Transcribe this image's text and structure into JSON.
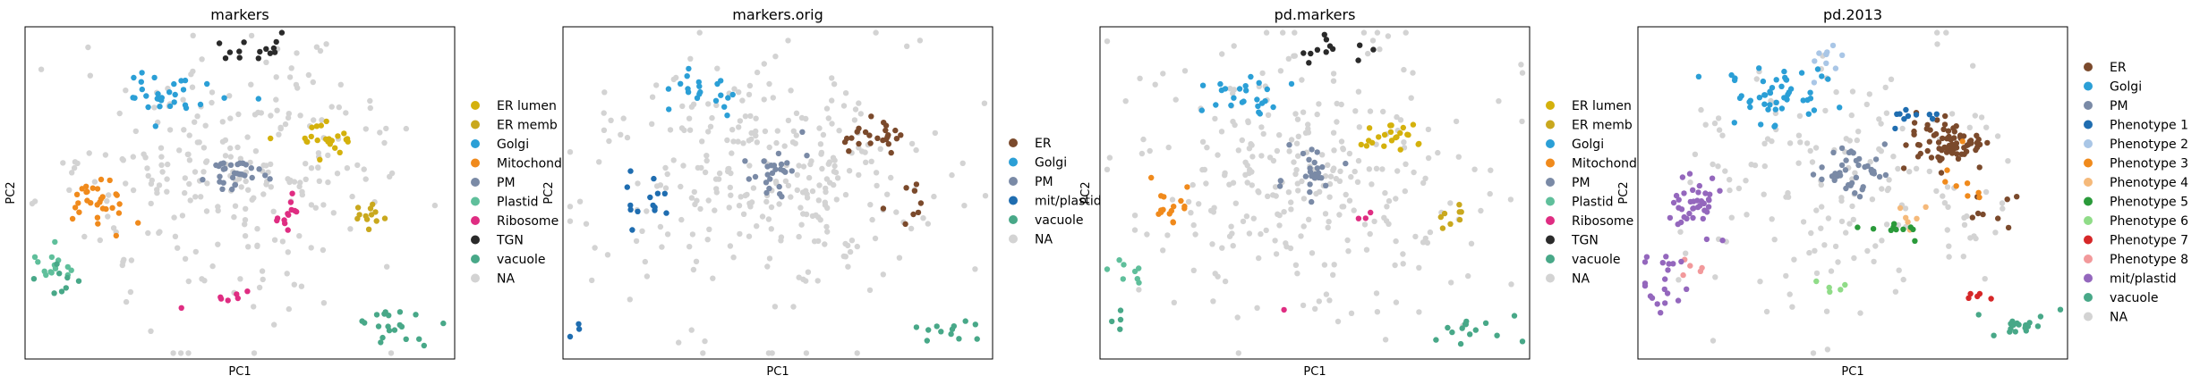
{
  "chart_data": [
    {
      "type": "scatter",
      "title": "markers",
      "xlabel": "PC1",
      "ylabel": "PC2",
      "grid": false,
      "ticks": false,
      "legend_position": "right",
      "legend": [
        {
          "label": "ER lumen",
          "color": "#d4b10c"
        },
        {
          "label": "ER memb",
          "color": "#c9a81e"
        },
        {
          "label": "Golgi",
          "color": "#2b9fd6"
        },
        {
          "label": "Mitochond",
          "color": "#f08a1c"
        },
        {
          "label": "PM",
          "color": "#7a8aa6"
        },
        {
          "label": "Plastid",
          "color": "#5fbf9b"
        },
        {
          "label": "Ribosome",
          "color": "#df2d82"
        },
        {
          "label": "TGN",
          "color": "#2a2a2a"
        },
        {
          "label": "vacuole",
          "color": "#48a888"
        },
        {
          "label": "NA",
          "color": "#d3d3d3"
        }
      ],
      "clusters": [
        {
          "class": "Golgi",
          "center": [
            -3.0,
            5.5
          ],
          "spread": [
            0.9,
            0.6
          ],
          "n": 30
        },
        {
          "class": "TGN",
          "center": [
            0.6,
            7.8
          ],
          "spread": [
            0.7,
            0.5
          ],
          "n": 14
        },
        {
          "class": "Mitochond",
          "center": [
            -6.0,
            0.0
          ],
          "spread": [
            0.7,
            0.7
          ],
          "n": 30
        },
        {
          "class": "PM",
          "center": [
            0.0,
            1.6
          ],
          "spread": [
            0.6,
            0.6
          ],
          "n": 30
        },
        {
          "class": "ER lumen",
          "center": [
            3.5,
            3.4
          ],
          "spread": [
            0.8,
            0.5
          ],
          "n": 24
        },
        {
          "class": "ER memb",
          "center": [
            5.5,
            -0.5
          ],
          "spread": [
            0.4,
            0.4
          ],
          "n": 12
        },
        {
          "class": "Ribosome",
          "center": [
            2.0,
            -0.5
          ],
          "spread": [
            0.4,
            0.6
          ],
          "n": 12
        },
        {
          "class": "Ribosome",
          "center": [
            -0.5,
            -4.8
          ],
          "spread": [
            0.4,
            0.3
          ],
          "n": 6
        },
        {
          "class": "Ribosome",
          "center": [
            -2.5,
            -5.5
          ],
          "spread": [
            0.1,
            0.1
          ],
          "n": 1
        },
        {
          "class": "Plastid",
          "center": [
            -7.6,
            -3.5
          ],
          "spread": [
            0.6,
            0.5
          ],
          "n": 14
        },
        {
          "class": "vacuole",
          "center": [
            6.3,
            -6.2
          ],
          "spread": [
            0.9,
            0.6
          ],
          "n": 20
        },
        {
          "class": "vacuole",
          "center": [
            -7.6,
            -4.4
          ],
          "spread": [
            0.5,
            0.5
          ],
          "n": 8
        },
        {
          "class": "NA",
          "center": [
            -0.5,
            1.5
          ],
          "spread": [
            3.6,
            3.3
          ],
          "n": 260
        }
      ],
      "xlim": [
        -9,
        9
      ],
      "ylim": [
        -8,
        9
      ]
    },
    {
      "type": "scatter",
      "title": "markers.orig",
      "xlabel": "PC1",
      "ylabel": "PC2",
      "grid": false,
      "ticks": false,
      "legend_position": "right",
      "legend": [
        {
          "label": "ER",
          "color": "#7b4a2c"
        },
        {
          "label": "Golgi",
          "color": "#2b9fd6"
        },
        {
          "label": "PM",
          "color": "#7a8aa6"
        },
        {
          "label": "mit/plastid",
          "color": "#1f6db0"
        },
        {
          "label": "vacuole",
          "color": "#48a888"
        },
        {
          "label": "NA",
          "color": "#d3d3d3"
        }
      ],
      "clusters": [
        {
          "class": "Golgi",
          "center": [
            -3.0,
            5.5
          ],
          "spread": [
            0.9,
            0.6
          ],
          "n": 20
        },
        {
          "class": "PM",
          "center": [
            0.0,
            1.6
          ],
          "spread": [
            0.6,
            0.6
          ],
          "n": 26
        },
        {
          "class": "ER",
          "center": [
            3.7,
            3.4
          ],
          "spread": [
            0.8,
            0.5
          ],
          "n": 24
        },
        {
          "class": "ER",
          "center": [
            5.6,
            -0.2
          ],
          "spread": [
            0.5,
            0.6
          ],
          "n": 8
        },
        {
          "class": "mit/plastid",
          "center": [
            -5.7,
            0.2
          ],
          "spread": [
            0.5,
            0.6
          ],
          "n": 14
        },
        {
          "class": "mit/plastid",
          "center": [
            -8.2,
            -6.5
          ],
          "spread": [
            0.3,
            0.3
          ],
          "n": 3
        },
        {
          "class": "vacuole",
          "center": [
            7.0,
            -6.6
          ],
          "spread": [
            0.7,
            0.4
          ],
          "n": 12
        },
        {
          "class": "NA",
          "center": [
            -0.5,
            1.0
          ],
          "spread": [
            3.6,
            3.4
          ],
          "n": 300
        }
      ],
      "xlim": [
        -9,
        9
      ],
      "ylim": [
        -8,
        9
      ]
    },
    {
      "type": "scatter",
      "title": "pd.markers",
      "xlabel": "PC1",
      "ylabel": "PC2",
      "grid": false,
      "ticks": false,
      "legend_position": "right",
      "legend": [
        {
          "label": "ER lumen",
          "color": "#d4b10c"
        },
        {
          "label": "ER memb",
          "color": "#c9a81e"
        },
        {
          "label": "Golgi",
          "color": "#2b9fd6"
        },
        {
          "label": "Mitochond",
          "color": "#f08a1c"
        },
        {
          "label": "PM",
          "color": "#7a8aa6"
        },
        {
          "label": "Plastid",
          "color": "#5fbf9b"
        },
        {
          "label": "Ribosome",
          "color": "#df2d82"
        },
        {
          "label": "TGN",
          "color": "#2a2a2a"
        },
        {
          "label": "vacuole",
          "color": "#48a888"
        },
        {
          "label": "NA",
          "color": "#d3d3d3"
        }
      ],
      "clusters": [
        {
          "class": "Golgi",
          "center": [
            -3.0,
            5.5
          ],
          "spread": [
            0.9,
            0.6
          ],
          "n": 24
        },
        {
          "class": "TGN",
          "center": [
            0.6,
            7.8
          ],
          "spread": [
            0.7,
            0.5
          ],
          "n": 12
        },
        {
          "class": "Mitochond",
          "center": [
            -6.0,
            0.0
          ],
          "spread": [
            0.5,
            0.6
          ],
          "n": 16
        },
        {
          "class": "PM",
          "center": [
            0.0,
            1.6
          ],
          "spread": [
            0.6,
            0.6
          ],
          "n": 24
        },
        {
          "class": "ER lumen",
          "center": [
            3.5,
            3.4
          ],
          "spread": [
            0.8,
            0.5
          ],
          "n": 22
        },
        {
          "class": "ER memb",
          "center": [
            5.5,
            -0.5
          ],
          "spread": [
            0.4,
            0.4
          ],
          "n": 8
        },
        {
          "class": "Ribosome",
          "center": [
            2.0,
            -0.5
          ],
          "spread": [
            0.2,
            0.3
          ],
          "n": 3
        },
        {
          "class": "Ribosome",
          "center": [
            -1.2,
            -5.3
          ],
          "spread": [
            0.1,
            0.1
          ],
          "n": 1
        },
        {
          "class": "Plastid",
          "center": [
            -7.8,
            -3.5
          ],
          "spread": [
            0.5,
            0.5
          ],
          "n": 8
        },
        {
          "class": "vacuole",
          "center": [
            6.8,
            -6.4
          ],
          "spread": [
            0.8,
            0.5
          ],
          "n": 14
        },
        {
          "class": "vacuole",
          "center": [
            -8.2,
            -5.8
          ],
          "spread": [
            0.3,
            0.3
          ],
          "n": 4
        },
        {
          "class": "NA",
          "center": [
            -0.5,
            1.2
          ],
          "spread": [
            3.6,
            3.4
          ],
          "n": 290
        }
      ],
      "xlim": [
        -9,
        9
      ],
      "ylim": [
        -8,
        9
      ]
    },
    {
      "type": "scatter",
      "title": "pd.2013",
      "xlabel": "PC1",
      "ylabel": "PC2",
      "grid": false,
      "ticks": false,
      "legend_position": "right",
      "legend": [
        {
          "label": "ER",
          "color": "#7b4a2c"
        },
        {
          "label": "Golgi",
          "color": "#2b9fd6"
        },
        {
          "label": "PM",
          "color": "#7a8aa6"
        },
        {
          "label": "Phenotype 1",
          "color": "#1f6db0"
        },
        {
          "label": "Phenotype 2",
          "color": "#a9c6e6"
        },
        {
          "label": "Phenotype 3",
          "color": "#f08a1c"
        },
        {
          "label": "Phenotype 4",
          "color": "#f5b97a"
        },
        {
          "label": "Phenotype 5",
          "color": "#2a9a3a"
        },
        {
          "label": "Phenotype 6",
          "color": "#90dc88"
        },
        {
          "label": "Phenotype 7",
          "color": "#d62728"
        },
        {
          "label": "Phenotype 8",
          "color": "#f2999b"
        },
        {
          "label": "mit/plastid",
          "color": "#9467bd"
        },
        {
          "label": "vacuole",
          "color": "#48a888"
        },
        {
          "label": "NA",
          "color": "#d3d3d3"
        }
      ],
      "clusters": [
        {
          "class": "Golgi",
          "center": [
            -3.2,
            5.6
          ],
          "spread": [
            1.2,
            0.8
          ],
          "n": 50
        },
        {
          "class": "Phenotype 2",
          "center": [
            -1.0,
            7.3
          ],
          "spread": [
            0.6,
            0.5
          ],
          "n": 10
        },
        {
          "class": "PM",
          "center": [
            0.0,
            1.6
          ],
          "spread": [
            0.7,
            0.6
          ],
          "n": 40
        },
        {
          "class": "ER",
          "center": [
            4.0,
            3.0
          ],
          "spread": [
            0.9,
            0.6
          ],
          "n": 75
        },
        {
          "class": "ER",
          "center": [
            5.8,
            -0.4
          ],
          "spread": [
            0.5,
            0.5
          ],
          "n": 8
        },
        {
          "class": "Phenotype 1",
          "center": [
            2.5,
            4.5
          ],
          "spread": [
            0.6,
            0.4
          ],
          "n": 10
        },
        {
          "class": "Phenotype 3",
          "center": [
            4.6,
            1.4
          ],
          "spread": [
            0.6,
            0.8
          ],
          "n": 8
        },
        {
          "class": "Phenotype 4",
          "center": [
            2.2,
            -0.4
          ],
          "spread": [
            0.3,
            0.5
          ],
          "n": 6
        },
        {
          "class": "Phenotype 5",
          "center": [
            1.5,
            -1.4
          ],
          "spread": [
            0.6,
            0.3
          ],
          "n": 10
        },
        {
          "class": "Phenotype 6",
          "center": [
            -1.2,
            -4.3
          ],
          "spread": [
            0.5,
            0.3
          ],
          "n": 5
        },
        {
          "class": "Phenotype 7",
          "center": [
            5.2,
            -4.9
          ],
          "spread": [
            0.4,
            0.3
          ],
          "n": 5
        },
        {
          "class": "Phenotype 8",
          "center": [
            -6.8,
            -3.3
          ],
          "spread": [
            0.3,
            0.3
          ],
          "n": 5
        },
        {
          "class": "mit/plastid",
          "center": [
            -6.6,
            0.0
          ],
          "spread": [
            0.7,
            0.8
          ],
          "n": 40
        },
        {
          "class": "mit/plastid",
          "center": [
            -8.0,
            -4.5
          ],
          "spread": [
            0.5,
            0.9
          ],
          "n": 20
        },
        {
          "class": "vacuole",
          "center": [
            6.8,
            -6.4
          ],
          "spread": [
            0.8,
            0.5
          ],
          "n": 18
        },
        {
          "class": "NA",
          "center": [
            -0.5,
            1.0
          ],
          "spread": [
            3.6,
            3.4
          ],
          "n": 170
        }
      ],
      "xlim": [
        -9,
        9
      ],
      "ylim": [
        -8,
        9
      ]
    }
  ]
}
